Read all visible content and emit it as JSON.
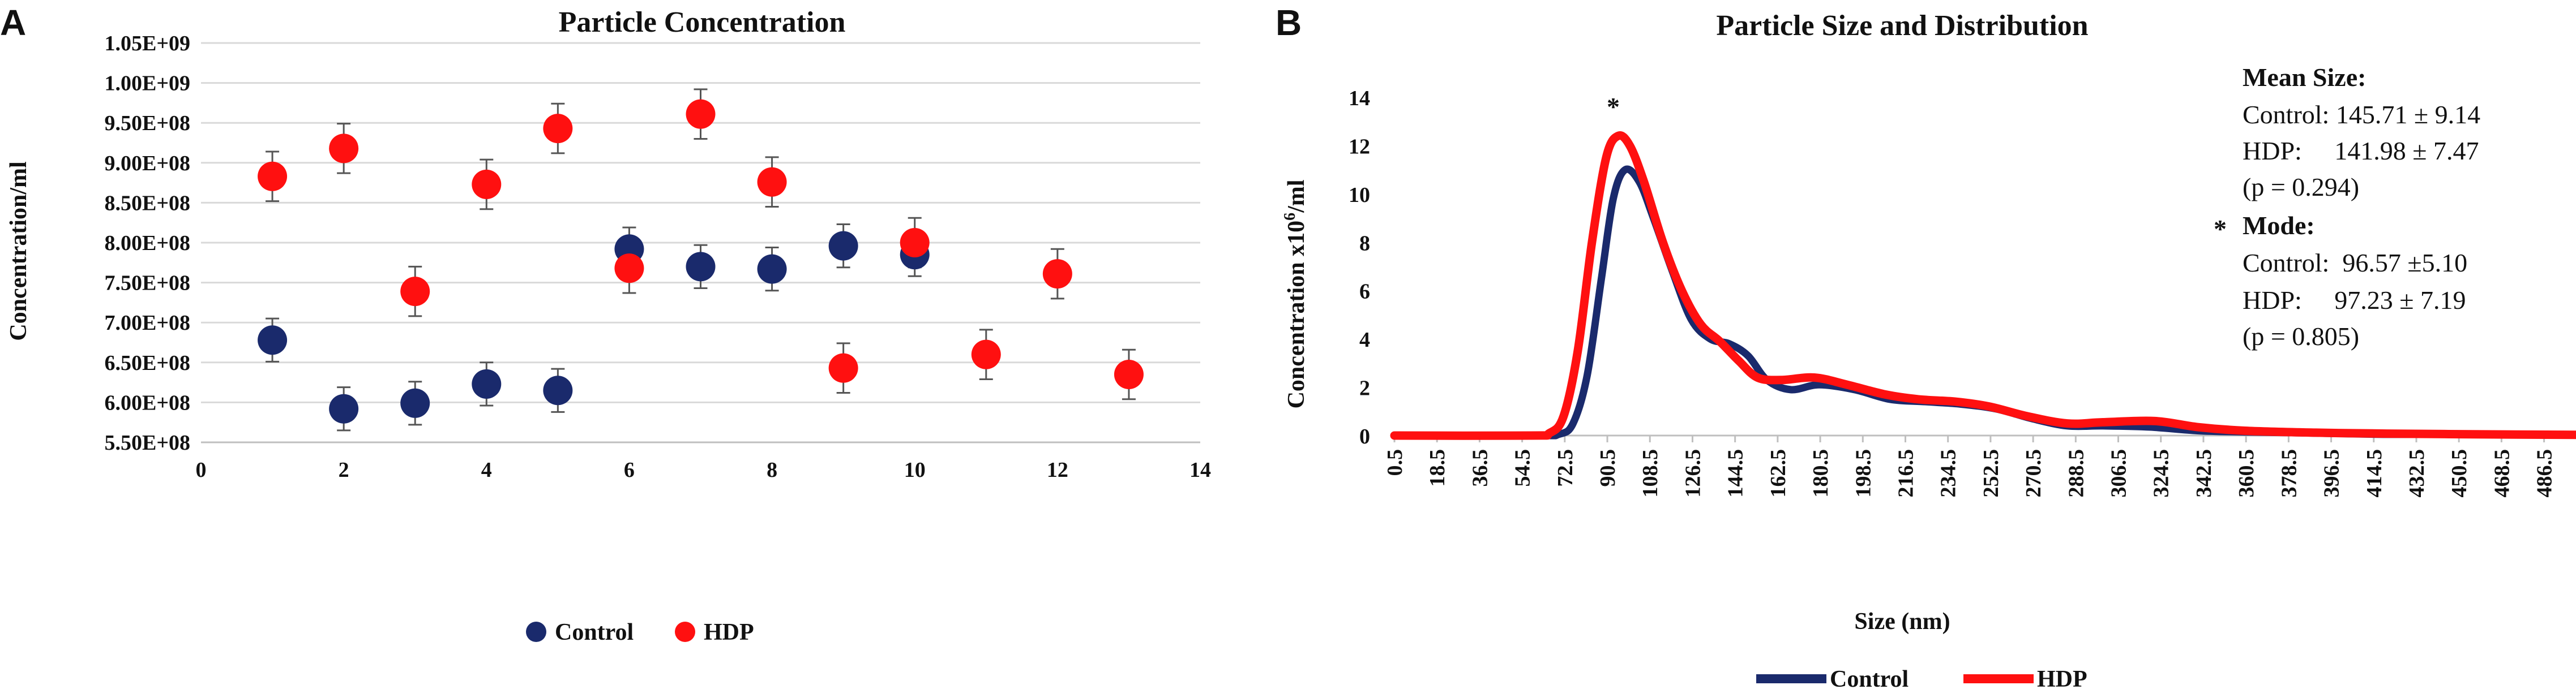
{
  "panels": {
    "a": {
      "letter": "A"
    },
    "b": {
      "letter": "B"
    }
  },
  "colors": {
    "control": "#1a2a6c",
    "hdp": "#ff1010",
    "grid": "#d9d9d9",
    "axis": "#bfbfbf",
    "errorbar": "#555555"
  },
  "chart_data": [
    {
      "type": "scatter",
      "title": "Particle Concentration",
      "xlabel": "",
      "ylabel": "Concentration/ml",
      "xlim": [
        0,
        14
      ],
      "ylim": [
        550000000,
        1050000000
      ],
      "x_ticks": [
        "0",
        "2",
        "4",
        "6",
        "8",
        "10",
        "12",
        "14"
      ],
      "y_ticks": [
        "5.50E+08",
        "6.00E+08",
        "6.50E+08",
        "7.00E+08",
        "7.50E+08",
        "8.00E+08",
        "8.50E+08",
        "9.00E+08",
        "9.50E+08",
        "1.00E+09",
        "1.05E+09"
      ],
      "grid": true,
      "legend": [
        "Control",
        "HDP"
      ],
      "legend_position": "bottom",
      "series": [
        {
          "name": "Control",
          "x": [
            1,
            2,
            3,
            4,
            5,
            6,
            7,
            8,
            9,
            10
          ],
          "y": [
            678000000,
            592000000,
            599000000,
            623000000,
            615000000,
            792000000,
            770000000,
            767000000,
            796000000,
            785000000
          ],
          "err": [
            27000000,
            27000000,
            27000000,
            27000000,
            27000000,
            27000000,
            27000000,
            27000000,
            27000000,
            27000000
          ]
        },
        {
          "name": "HDP",
          "x": [
            1,
            2,
            3,
            4,
            5,
            6,
            7,
            8,
            9,
            10,
            11,
            12,
            13
          ],
          "y": [
            883000000,
            918000000,
            739000000,
            873000000,
            943000000,
            768000000,
            961000000,
            876000000,
            643000000,
            800000000,
            660000000,
            761000000,
            635000000
          ],
          "err": [
            31000000,
            31000000,
            31000000,
            31000000,
            31000000,
            31000000,
            31000000,
            31000000,
            31000000,
            31000000,
            31000000,
            31000000,
            31000000
          ]
        }
      ]
    },
    {
      "type": "line",
      "title": "Particle Size and Distribution",
      "xlabel": "Size (nm)",
      "ylabel": "Concentration x10⁶/ml",
      "xlim": [
        0.5,
        500
      ],
      "ylim": [
        0,
        14
      ],
      "x_ticks": [
        "0.5",
        "18.5",
        "36.5",
        "54.5",
        "72.5",
        "90.5",
        "108.5",
        "126.5",
        "144.5",
        "162.5",
        "180.5",
        "198.5",
        "216.5",
        "234.5",
        "252.5",
        "270.5",
        "288.5",
        "306.5",
        "324.5",
        "342.5",
        "360.5",
        "378.5",
        "396.5",
        "414.5",
        "432.5",
        "450.5",
        "468.5",
        "486.5"
      ],
      "y_ticks": [
        "0",
        "2",
        "4",
        "6",
        "8",
        "10",
        "12",
        "14"
      ],
      "grid": false,
      "legend": [
        "Control",
        "HDP"
      ],
      "legend_position": "bottom",
      "series": [
        {
          "name": "Control",
          "x": [
            0.5,
            60,
            70,
            76,
            82,
            88,
            93,
            98,
            104,
            110,
            118,
            126,
            134,
            142,
            150,
            158,
            168,
            180,
            195,
            210,
            225,
            240,
            255,
            270,
            285,
            300,
            320,
            340,
            360,
            390,
            420,
            460,
            500
          ],
          "y": [
            0,
            0,
            0.05,
            0.5,
            2.5,
            6.5,
            9.8,
            11.0,
            10.5,
            9.0,
            6.8,
            4.8,
            4.0,
            3.8,
            3.3,
            2.3,
            1.9,
            2.1,
            1.9,
            1.5,
            1.4,
            1.3,
            1.1,
            0.7,
            0.4,
            0.4,
            0.35,
            0.2,
            0.15,
            0.1,
            0.05,
            0.05,
            0.02
          ]
        },
        {
          "name": "HDP",
          "x": [
            0.5,
            58,
            66,
            72,
            78,
            84,
            90,
            95,
            100,
            106,
            114,
            122,
            130,
            138,
            146,
            154,
            164,
            178,
            192,
            208,
            222,
            238,
            252,
            268,
            285,
            300,
            322,
            340,
            360,
            390,
            420,
            460,
            500
          ],
          "y": [
            0,
            0,
            0.1,
            0.8,
            3.5,
            8.0,
            11.5,
            12.4,
            12.0,
            10.5,
            8.0,
            6.0,
            4.6,
            3.9,
            3.1,
            2.4,
            2.3,
            2.4,
            2.1,
            1.7,
            1.5,
            1.4,
            1.2,
            0.8,
            0.5,
            0.55,
            0.6,
            0.35,
            0.2,
            0.12,
            0.08,
            0.05,
            0.03
          ]
        }
      ],
      "annotations": {
        "peak_marker": "*",
        "mean_size_heading": "Mean Size:",
        "mean_control": "Control: 145.71 ± 9.14",
        "mean_hdp": "HDP:     141.98 ± 7.47",
        "mean_p": "(p = 0.294)",
        "mode_star": "*",
        "mode_heading": "Mode:",
        "mode_control": "Control:  96.57 ±5.10",
        "mode_hdp": "HDP:     97.23 ± 7.19",
        "mode_p": "(p = 0.805)"
      }
    }
  ]
}
